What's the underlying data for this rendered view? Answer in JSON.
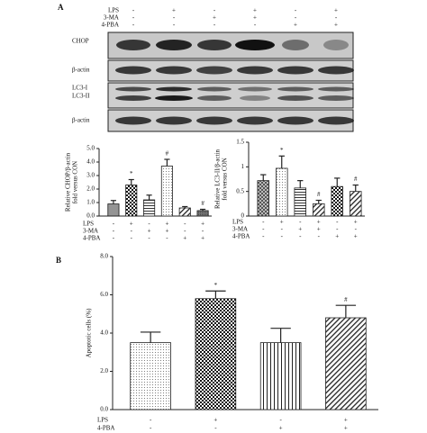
{
  "panel_labels": [
    "A",
    "B"
  ],
  "blot": {
    "treatments": [
      {
        "name": "LPS",
        "signs": [
          "-",
          "+",
          "-",
          "+",
          "-",
          "+"
        ]
      },
      {
        "name": "3-MA",
        "signs": [
          "-",
          "-",
          "+",
          "+",
          "-",
          "-"
        ]
      },
      {
        "name": "4-PBA",
        "signs": [
          "-",
          "-",
          "-",
          "-",
          "+",
          "+"
        ]
      }
    ],
    "labels": [
      "CHOP",
      "β-actin",
      "LC3-I",
      "LC3-II",
      "β-actin"
    ]
  },
  "chart_data": [
    {
      "type": "bar",
      "ylabel": [
        "Relative CHOP/β-actin",
        "fold versus CON"
      ],
      "values": [
        0.9,
        2.3,
        1.2,
        3.7,
        0.6,
        0.4
      ],
      "errors": [
        0.25,
        0.4,
        0.35,
        0.5,
        0.1,
        0.1
      ],
      "annotations": [
        null,
        "*",
        null,
        "#",
        null,
        "#"
      ],
      "ylim": [
        0,
        5
      ],
      "yticks": [
        {
          "value": 0,
          "label": "0.0"
        },
        {
          "value": 1,
          "label": "1.0"
        },
        {
          "value": 2,
          "label": "2.0"
        },
        {
          "value": 3,
          "label": "3.0"
        },
        {
          "value": 4,
          "label": "4.0"
        },
        {
          "value": 5,
          "label": "5.0"
        }
      ],
      "fills": [
        "dotsdark",
        "checker",
        "hstripe",
        "dots",
        "diag",
        "dark"
      ],
      "treatments": [
        {
          "name": "LPS",
          "signs": [
            "-",
            "+",
            "-",
            "+",
            "-",
            "+"
          ]
        },
        {
          "name": "3-MA",
          "signs": [
            "-",
            "-",
            "+",
            "+",
            "-",
            "-"
          ]
        },
        {
          "name": "4-PBA",
          "signs": [
            "-",
            "-",
            "-",
            "-",
            "+",
            "+"
          ]
        }
      ]
    },
    {
      "type": "bar",
      "ylabel": [
        "Relative LC3-II/β-actin",
        "fold versus CON"
      ],
      "values": [
        0.72,
        0.97,
        0.57,
        0.25,
        0.6,
        0.5
      ],
      "errors": [
        0.12,
        0.25,
        0.15,
        0.07,
        0.17,
        0.13
      ],
      "annotations": [
        null,
        "*",
        null,
        "#",
        null,
        "#"
      ],
      "ylim": [
        0,
        1.5
      ],
      "yticks": [
        0,
        0.5,
        1,
        1.5
      ],
      "fills": [
        "checkerdark",
        "dots",
        "hstripe",
        "diag",
        "checker",
        "diag"
      ],
      "treatments": [
        {
          "name": "LPS",
          "signs": [
            "-",
            "+",
            "-",
            "+",
            "-",
            "+"
          ]
        },
        {
          "name": "3-MA",
          "signs": [
            "-",
            "-",
            "+",
            "+",
            "-",
            "-"
          ]
        },
        {
          "name": "4-PBA",
          "signs": [
            "-",
            "-",
            "-",
            "-",
            "+",
            "+"
          ]
        }
      ]
    },
    {
      "type": "bar",
      "ylabel": [
        "Apoptotic cells (%)"
      ],
      "values": [
        3.5,
        5.8,
        3.5,
        4.8
      ],
      "errors": [
        0.55,
        0.4,
        0.75,
        0.65
      ],
      "annotations": [
        null,
        "*",
        null,
        "#"
      ],
      "ylim": [
        0,
        8
      ],
      "yticks": [
        {
          "value": 0,
          "label": "0.0"
        },
        {
          "value": 2,
          "label": "2.0"
        },
        {
          "value": 4,
          "label": "4.0"
        },
        {
          "value": 6,
          "label": "6.0"
        },
        {
          "value": 8,
          "label": "8.0"
        }
      ],
      "fills": [
        "dots",
        "checker",
        "vstripe",
        "diag"
      ],
      "treatments": [
        {
          "name": "LPS",
          "signs": [
            "-",
            "+",
            "-",
            "+"
          ]
        },
        {
          "name": "4-PBA",
          "signs": [
            "-",
            "-",
            "+",
            "+"
          ]
        }
      ]
    }
  ]
}
